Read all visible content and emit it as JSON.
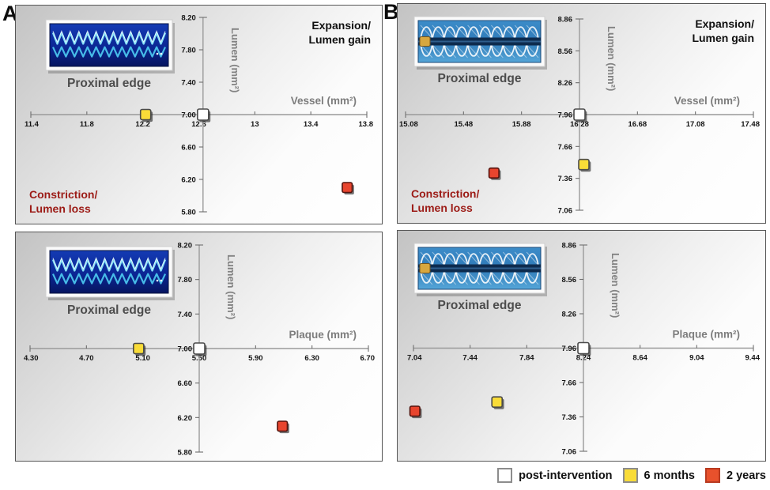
{
  "panel_labels": [
    "A",
    "B"
  ],
  "legend": {
    "items": [
      {
        "label": "post-intervention",
        "color": "#ffffff",
        "border": "#8c8c8c"
      },
      {
        "label": "6 months",
        "color": "#f9dc38",
        "border": "#8c8c8c"
      },
      {
        "label": "2 years",
        "color": "#e8512c",
        "border": "#b93a20"
      }
    ]
  },
  "colors": {
    "tick_text": "#141414",
    "axis_line": "#9a9a9a",
    "axis_label": "#7d7d7d",
    "expansion_text": "#101010",
    "constriction_text": "#9c1b16",
    "caption_text": "#4d4d4d",
    "marker_post_border": "#4a4a4a",
    "marker_6mo_border": "#4a4a4a",
    "marker_2yr_border": "#54120c"
  },
  "chart_data": [
    {
      "type": "scatter",
      "panel": "A",
      "name": "a-vessel",
      "xlabel": "Vessel (mm²)",
      "ylabel": "Lumen (mm²)",
      "x_ticks": [
        "11.4",
        "11.8",
        "12.2",
        "12.6",
        "13",
        "13.4",
        "13.8"
      ],
      "y_ticks": [
        "8.20",
        "7.80",
        "7.40",
        "7.00",
        "6.60",
        "6.20",
        "5.80"
      ],
      "axis_cross": {
        "x": 12.63,
        "y": 7.0
      },
      "series": [
        {
          "name": "post-intervention",
          "x": 12.63,
          "y": 7.0
        },
        {
          "name": "6 months",
          "x": 12.22,
          "y": 7.0
        },
        {
          "name": "2 years",
          "x": 13.66,
          "y": 6.1
        }
      ],
      "annotations": {
        "top_right": [
          "Expansion/",
          "Lumen gain"
        ],
        "bottom_left": [
          "Constriction/",
          "Lumen loss"
        ]
      },
      "inset": {
        "caption": "Proximal edge",
        "style": "A"
      }
    },
    {
      "type": "scatter",
      "panel": "B",
      "name": "b-vessel",
      "xlabel": "Vessel (mm²)",
      "ylabel": "Lumen (mm²)",
      "x_ticks": [
        "15.08",
        "15.48",
        "15.88",
        "16.28",
        "16.68",
        "17.08",
        "17.48"
      ],
      "y_ticks": [
        "8.86",
        "8.56",
        "8.26",
        "7.96",
        "7.66",
        "7.36",
        "7.06"
      ],
      "axis_cross": {
        "x": 16.28,
        "y": 7.96
      },
      "series": [
        {
          "name": "post-intervention",
          "x": 16.28,
          "y": 7.96
        },
        {
          "name": "6 months",
          "x": 16.31,
          "y": 7.49
        },
        {
          "name": "2 years",
          "x": 15.69,
          "y": 7.41
        }
      ],
      "annotations": {
        "top_right": [
          "Expansion/",
          "Lumen gain"
        ],
        "bottom_left": [
          "Constriction/",
          "Lumen loss"
        ]
      },
      "inset": {
        "caption": "Proximal edge",
        "style": "B"
      }
    },
    {
      "type": "scatter",
      "panel": "A",
      "name": "a-plaque",
      "xlabel": "Plaque (mm²)",
      "ylabel": "Lumen (mm²)",
      "x_ticks": [
        "4.30",
        "4.70",
        "5.10",
        "5.50",
        "5.90",
        "6.30",
        "6.70"
      ],
      "y_ticks": [
        "8.20",
        "7.80",
        "7.40",
        "7.00",
        "6.60",
        "6.20",
        "5.80"
      ],
      "axis_cross": {
        "x": 5.5,
        "y": 7.0
      },
      "series": [
        {
          "name": "post-intervention",
          "x": 5.5,
          "y": 7.0
        },
        {
          "name": "6 months",
          "x": 5.07,
          "y": 7.0
        },
        {
          "name": "2 years",
          "x": 6.09,
          "y": 6.1
        }
      ],
      "annotations": {},
      "inset": {
        "caption": "Proximal edge",
        "style": "A"
      }
    },
    {
      "type": "scatter",
      "panel": "B",
      "name": "b-plaque",
      "xlabel": "Plaque (mm²)",
      "ylabel": "Lumen (mm²)",
      "x_ticks": [
        "7.04",
        "7.44",
        "7.84",
        "8.24",
        "8.64",
        "9.04",
        "9.44"
      ],
      "y_ticks": [
        "8.86",
        "8.56",
        "8.26",
        "7.96",
        "7.66",
        "7.36",
        "7.06"
      ],
      "axis_cross": {
        "x": 8.24,
        "y": 7.96
      },
      "series": [
        {
          "name": "post-intervention",
          "x": 8.24,
          "y": 7.96
        },
        {
          "name": "6 months",
          "x": 7.63,
          "y": 7.49
        },
        {
          "name": "2 years",
          "x": 7.05,
          "y": 7.41
        }
      ],
      "annotations": {},
      "inset": {
        "caption": "Proximal edge",
        "style": "B"
      }
    }
  ]
}
